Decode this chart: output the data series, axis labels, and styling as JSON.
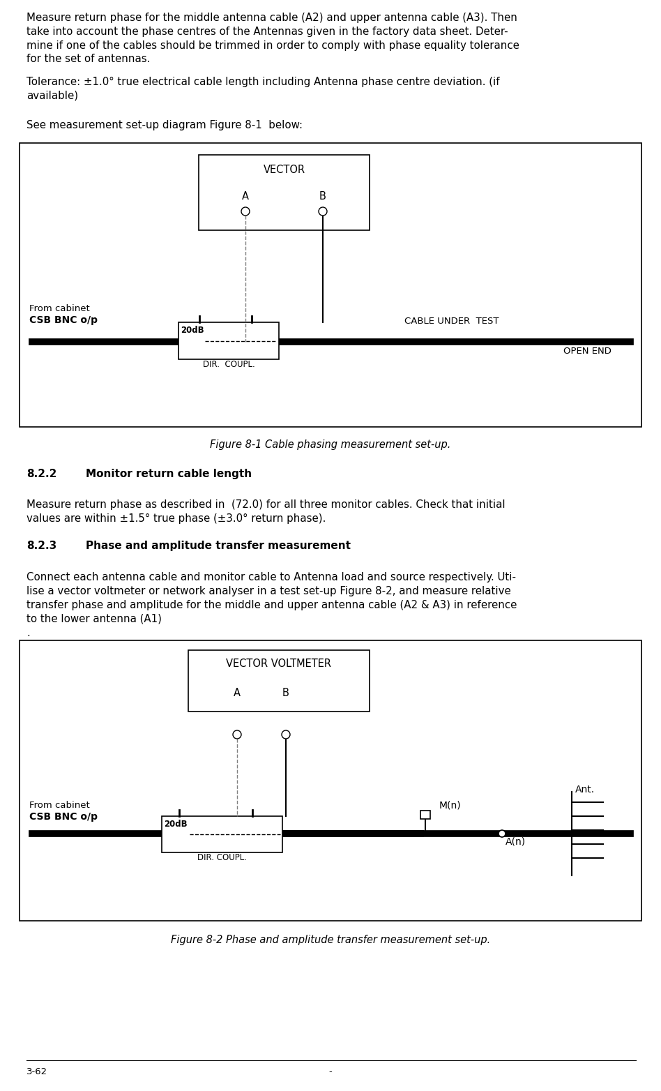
{
  "bg_color": "#ffffff",
  "para1": "Measure return phase for the middle antenna cable (A2) and upper antenna cable (A3). Then\ntake into account the phase centres of the Antennas given in the factory data sheet. Deter-\nmine if one of the cables should be trimmed in order to comply with phase equality tolerance\nfor the set of antennas.",
  "para2_label": "Tolerance: ±1.0° true electrical cable length including Antenna phase centre deviation. (if\navailable)",
  "para3": "See measurement set-up diagram Figure 8-1  below:",
  "fig1_caption": "Figure 8-1 Cable phasing measurement set-up.",
  "section_822": "8.2.2",
  "section_822_title": "Monitor return cable length",
  "para_822": "Measure return phase as described in  (72.0) for all three monitor cables. Check that initial\nvalues are within ±1.5° true phase (±3.0° return phase).",
  "section_823": "8.2.3",
  "section_823_title": "Phase and amplitude transfer measurement",
  "para_823": "Connect each antenna cable and monitor cable to Antenna load and source respectively. Uti-\nlise a vector voltmeter or network analyser in a test set-up Figure 8-2, and measure relative\ntransfer phase and amplitude for the middle and upper antenna cable (A2 & A3) in reference\nto the lower antenna (A1)",
  "para_823b": ".",
  "fig2_caption": "Figure 8-2 Phase and amplitude transfer measurement set-up.",
  "footer_left": "3-62",
  "footer_center": "-"
}
